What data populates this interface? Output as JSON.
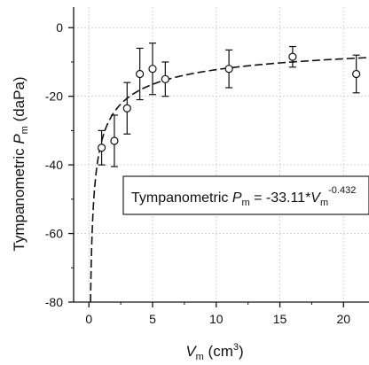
{
  "chart_data": {
    "type": "scatter",
    "xlabel": {
      "var": "V",
      "sub": "m",
      "unit": " (cm",
      "sup": "3",
      "close": ")"
    },
    "ylabel": {
      "pre": "Tympanometric ",
      "var": "P",
      "sub": "m",
      "unit": " (daPa)"
    },
    "xlim": [
      -1.2,
      22
    ],
    "ylim": [
      -80,
      6
    ],
    "xticks": [
      "0",
      "5",
      "10",
      "15",
      "20"
    ],
    "xtick_values": [
      0,
      5,
      10,
      15,
      20
    ],
    "yticks": [
      "0",
      "-20",
      "-40",
      "-60",
      "-80"
    ],
    "ytick_values": [
      0,
      -20,
      -40,
      -60,
      -80
    ],
    "grid": true,
    "points": [
      {
        "x": 1,
        "y": -35,
        "err": 5
      },
      {
        "x": 2,
        "y": -33,
        "err": 7.5
      },
      {
        "x": 3,
        "y": -23.5,
        "err": 7.5
      },
      {
        "x": 4,
        "y": -13.5,
        "err": 7.5
      },
      {
        "x": 5,
        "y": -12,
        "err": 7.5
      },
      {
        "x": 6,
        "y": -15,
        "err": 5
      },
      {
        "x": 11,
        "y": -12,
        "err": 5.5
      },
      {
        "x": 16,
        "y": -8.5,
        "err": 3
      },
      {
        "x": 21,
        "y": -13.5,
        "err": 5.5
      }
    ],
    "fit": {
      "a": -33.11,
      "b": -0.432,
      "style": "dashed"
    },
    "annotation": {
      "pre": "Tympanometric ",
      "var1": "P",
      "sub1": "m",
      "eq": " = -33.11*",
      "var2": "V",
      "sub2": "m",
      "exp": "-0.432"
    }
  }
}
